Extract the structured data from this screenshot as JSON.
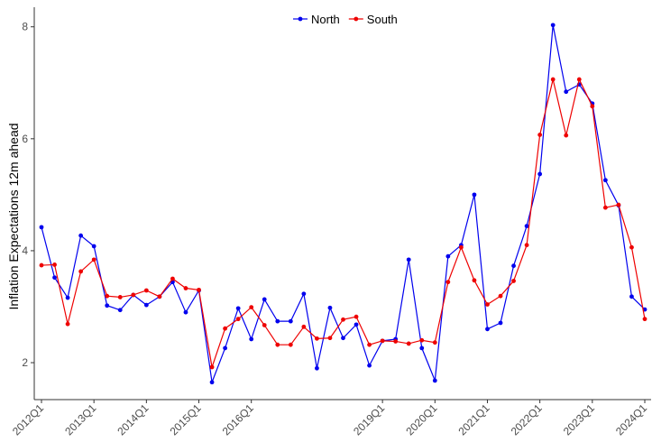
{
  "chart_data": {
    "type": "line",
    "y_label": "Inflation Expectations 12m ahead",
    "categories": [
      "2012Q1",
      null,
      null,
      null,
      "2013Q1",
      null,
      null,
      null,
      "2014Q1",
      null,
      null,
      null,
      "2015Q1",
      null,
      null,
      null,
      "2016Q1",
      null,
      null,
      null,
      null,
      null,
      null,
      null,
      null,
      null,
      "2019Q1",
      null,
      null,
      null,
      "2020Q1",
      null,
      null,
      null,
      "2021Q1",
      null,
      null,
      null,
      "2022Q1",
      null,
      null,
      null,
      "2023Q1",
      null,
      null,
      null,
      "2024Q1"
    ],
    "series": [
      {
        "name": "North",
        "color": "#0000ee",
        "values": [
          4.42,
          3.52,
          3.16,
          4.27,
          4.08,
          3.02,
          2.94,
          3.21,
          3.03,
          3.18,
          3.44,
          2.9,
          3.29,
          1.65,
          2.26,
          2.97,
          2.42,
          3.13,
          2.74,
          2.74,
          3.23,
          1.9,
          2.98,
          2.44,
          2.68,
          1.95,
          2.39,
          2.42,
          3.84,
          2.26,
          1.68,
          3.9,
          4.1,
          5.0,
          2.6,
          2.71,
          3.73,
          4.44,
          5.37,
          8.03,
          6.84,
          6.97,
          6.63,
          5.26,
          4.81,
          3.18,
          2.95
        ]
      },
      {
        "name": "South",
        "color": "#ee0000",
        "values": [
          3.74,
          3.75,
          2.69,
          3.63,
          3.84,
          3.19,
          3.17,
          3.21,
          3.29,
          3.18,
          3.5,
          3.33,
          3.3,
          1.92,
          2.61,
          2.78,
          2.99,
          2.67,
          2.32,
          2.32,
          2.64,
          2.43,
          2.44,
          2.77,
          2.82,
          2.32,
          2.39,
          2.38,
          2.34,
          2.4,
          2.36,
          3.44,
          4.06,
          3.47,
          3.04,
          3.19,
          3.46,
          4.1,
          6.07,
          7.06,
          6.06,
          7.06,
          6.58,
          4.77,
          4.82,
          4.06,
          2.78
        ]
      }
    ],
    "ylim": [
      1.34,
      8.35
    ],
    "yticks": [
      2,
      4,
      6,
      8
    ],
    "grid": false,
    "legend": "top"
  }
}
